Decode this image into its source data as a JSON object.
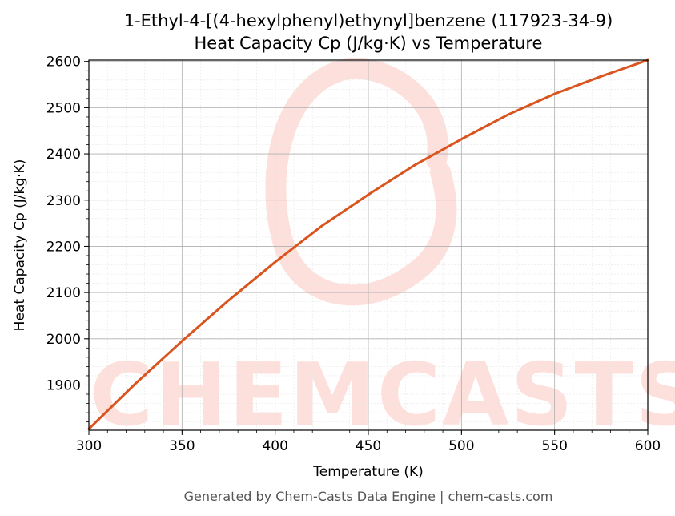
{
  "footer": "Generated by Chem-Casts Data Engine | chem-casts.com",
  "watermark": "CHEMCASTS",
  "colors": {
    "line": "#d9541e",
    "watermark": "#fde0db",
    "grid_major": "#b0b0b0",
    "grid_minor": "#e6e6e6"
  },
  "chart_data": {
    "type": "line",
    "title": "1-Ethyl-4-[(4-hexylphenyl)ethynyl]benzene (117923-34-9)",
    "subtitle": "Heat Capacity Cp (J/kg·K) vs Temperature",
    "xlabel": "Temperature (K)",
    "ylabel": "Heat Capacity Cp (J/kg·K)",
    "xlim": [
      300,
      600
    ],
    "ylim": [
      1802,
      2603
    ],
    "xticks": [
      300,
      350,
      400,
      450,
      500,
      550,
      600
    ],
    "yticks": [
      1900,
      2000,
      2100,
      2200,
      2300,
      2400,
      2500,
      2600
    ],
    "grid": true,
    "x": [
      300,
      325,
      350,
      375,
      400,
      425,
      450,
      475,
      500,
      525,
      550,
      575,
      600
    ],
    "y": [
      1805,
      1903,
      1995,
      2083,
      2166,
      2244,
      2312,
      2376,
      2432,
      2485,
      2530,
      2568,
      2603
    ]
  }
}
